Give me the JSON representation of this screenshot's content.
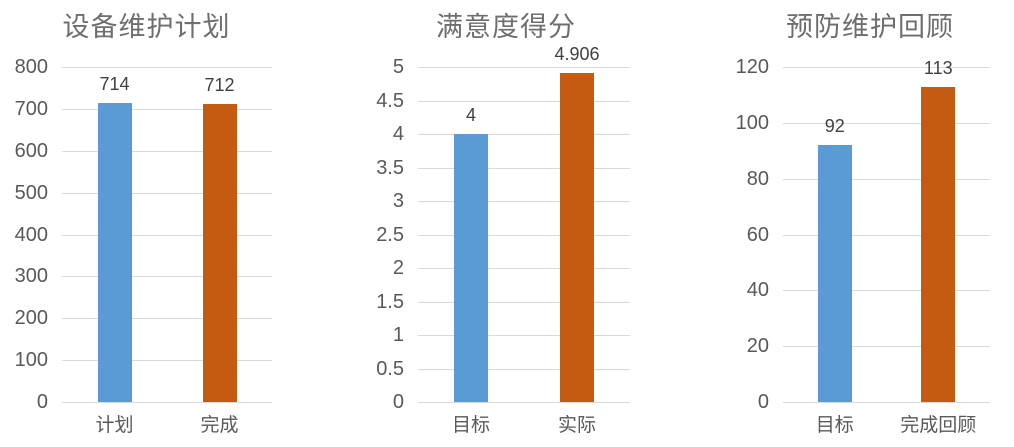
{
  "page": {
    "background": "#ffffff"
  },
  "palette": {
    "bar_blue": "#5B9BD5",
    "bar_orange": "#C55A11",
    "gridline": "#D9D9D9",
    "title_color": "#6E6E6E",
    "tick_label_color": "#595959",
    "data_label_color": "#404040"
  },
  "chart_data": [
    {
      "type": "bar",
      "title": "设备维护计划",
      "categories": [
        "计划",
        "完成"
      ],
      "values": [
        714,
        712
      ],
      "value_labels": [
        "714",
        "712"
      ],
      "bar_colors": [
        "#5B9BD5",
        "#C55A11"
      ],
      "xlabel": "",
      "ylabel": "",
      "ylim": [
        0,
        800
      ],
      "ytick_labels": [
        "0",
        "100",
        "200",
        "300",
        "400",
        "500",
        "600",
        "700",
        "800"
      ],
      "grid": true,
      "legend": "none"
    },
    {
      "type": "bar",
      "title": "满意度得分",
      "categories": [
        "目标",
        "实际"
      ],
      "values": [
        4,
        4.906
      ],
      "value_labels": [
        "4",
        "4.906"
      ],
      "bar_colors": [
        "#5B9BD5",
        "#C55A11"
      ],
      "xlabel": "",
      "ylabel": "",
      "ylim": [
        0,
        5
      ],
      "ytick_labels": [
        "0",
        "0.5",
        "1",
        "1.5",
        "2",
        "2.5",
        "3",
        "3.5",
        "4",
        "4.5",
        "5"
      ],
      "grid": true,
      "legend": "none"
    },
    {
      "type": "bar",
      "title": "预防维护回顾",
      "categories": [
        "目标",
        "完成回顾"
      ],
      "values": [
        92,
        113
      ],
      "value_labels": [
        "92",
        "113"
      ],
      "bar_colors": [
        "#5B9BD5",
        "#C55A11"
      ],
      "xlabel": "",
      "ylabel": "",
      "ylim": [
        0,
        120
      ],
      "ytick_labels": [
        "0",
        "20",
        "40",
        "60",
        "80",
        "100",
        "120"
      ],
      "grid": true,
      "legend": "none"
    }
  ]
}
